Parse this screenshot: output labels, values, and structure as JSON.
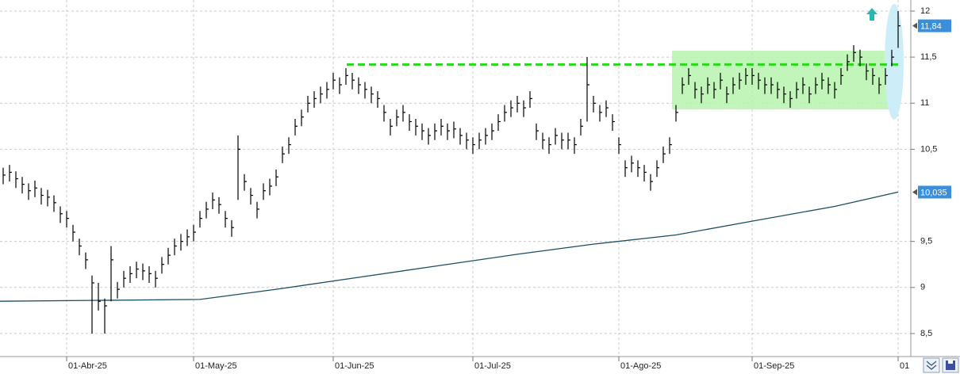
{
  "chart_data": {
    "type": "ohlc",
    "color": "#000000",
    "xlim": [
      -0.5,
      143
    ],
    "xticks": [
      {
        "value": 10,
        "label": "01-Abr-25"
      },
      {
        "value": 30,
        "label": "01-May-25"
      },
      {
        "value": 52,
        "label": "01-Jun-25"
      },
      {
        "value": 74,
        "label": "01-Jul-25"
      },
      {
        "value": 97,
        "label": "01-Ago-25"
      },
      {
        "value": 118,
        "label": "01-Sep-25"
      },
      {
        "value": 141,
        "label": "01"
      }
    ],
    "ylim": [
      8.25,
      12.12
    ],
    "yticks": [
      {
        "value": 8.5,
        "label": "8,5"
      },
      9,
      {
        "value": 9.5,
        "label": "9,5"
      },
      {
        "value": 10.5,
        "label": "10,5"
      },
      11,
      {
        "value": 11.5,
        "label": "11,5"
      },
      12
    ],
    "grid": true,
    "high": [
      10.3,
      10.33,
      10.26,
      10.2,
      10.13,
      10.16,
      10.08,
      10.06,
      10.0,
      9.88,
      9.83,
      9.68,
      9.53,
      9.38,
      9.13,
      9.05,
      8.88,
      9.45,
      9.06,
      9.18,
      9.23,
      9.28,
      9.26,
      9.23,
      9.18,
      9.33,
      9.43,
      9.53,
      9.58,
      9.63,
      9.68,
      9.83,
      9.93,
      10.03,
      9.98,
      9.83,
      9.73,
      10.65,
      10.23,
      10.08,
      9.93,
      10.13,
      10.18,
      10.28,
      10.53,
      10.63,
      10.83,
      10.93,
      11.08,
      11.13,
      11.18,
      11.23,
      11.33,
      11.28,
      11.38,
      11.33,
      11.28,
      11.23,
      11.18,
      11.13,
      10.98,
      10.83,
      10.93,
      10.98,
      10.88,
      10.83,
      10.78,
      10.73,
      10.78,
      10.83,
      10.78,
      10.8,
      10.73,
      10.68,
      10.63,
      10.68,
      10.73,
      10.78,
      10.88,
      10.98,
      11.03,
      11.08,
      11.03,
      11.13,
      10.78,
      10.68,
      10.63,
      10.73,
      10.68,
      10.68,
      10.63,
      10.83,
      11.5,
      11.08,
      10.98,
      11.03,
      10.88,
      10.63,
      10.38,
      10.43,
      10.38,
      10.33,
      10.23,
      10.38,
      10.53,
      10.63,
      10.98,
      11.28,
      11.38,
      11.23,
      11.18,
      11.28,
      11.23,
      11.33,
      11.18,
      11.28,
      11.33,
      11.38,
      11.38,
      11.33,
      11.28,
      11.28,
      11.23,
      11.18,
      11.13,
      11.23,
      11.28,
      11.18,
      11.28,
      11.33,
      11.28,
      11.23,
      11.38,
      11.53,
      11.63,
      11.58,
      11.43,
      11.38,
      11.28,
      11.38,
      11.58,
      12.0
    ],
    "low": [
      10.12,
      10.15,
      10.08,
      10.02,
      9.95,
      9.98,
      9.9,
      9.88,
      9.82,
      9.7,
      9.65,
      9.5,
      9.35,
      9.2,
      8.5,
      8.75,
      8.5,
      8.85,
      8.88,
      9.0,
      9.05,
      9.1,
      9.08,
      9.05,
      9.0,
      9.15,
      9.25,
      9.35,
      9.4,
      9.45,
      9.5,
      9.65,
      9.75,
      9.85,
      9.8,
      9.65,
      9.55,
      9.95,
      10.05,
      9.9,
      9.75,
      9.95,
      10.0,
      10.1,
      10.35,
      10.45,
      10.65,
      10.75,
      10.9,
      10.95,
      11.0,
      11.05,
      11.15,
      11.1,
      11.2,
      11.15,
      11.1,
      11.05,
      11.0,
      10.95,
      10.8,
      10.65,
      10.75,
      10.8,
      10.7,
      10.65,
      10.6,
      10.55,
      10.6,
      10.65,
      10.6,
      10.62,
      10.55,
      10.5,
      10.45,
      10.5,
      10.55,
      10.6,
      10.7,
      10.8,
      10.85,
      10.9,
      10.85,
      10.95,
      10.6,
      10.5,
      10.45,
      10.55,
      10.5,
      10.5,
      10.45,
      10.65,
      10.8,
      10.9,
      10.8,
      10.85,
      10.7,
      10.45,
      10.2,
      10.25,
      10.2,
      10.15,
      10.05,
      10.2,
      10.35,
      10.45,
      10.8,
      11.1,
      11.2,
      11.05,
      11.0,
      11.1,
      11.05,
      11.15,
      11.0,
      11.1,
      11.15,
      11.2,
      11.2,
      11.15,
      11.1,
      11.1,
      11.05,
      11.0,
      10.95,
      11.05,
      11.1,
      11.0,
      11.1,
      11.15,
      11.1,
      11.05,
      11.2,
      11.35,
      11.45,
      11.4,
      11.25,
      11.2,
      11.1,
      11.2,
      11.4,
      11.6
    ],
    "close": [
      10.22,
      10.25,
      10.18,
      10.12,
      10.05,
      10.08,
      10.0,
      9.98,
      9.92,
      9.8,
      9.75,
      9.6,
      9.45,
      9.3,
      9.05,
      8.85,
      8.8,
      9.3,
      8.98,
      9.1,
      9.15,
      9.2,
      9.18,
      9.15,
      9.1,
      9.25,
      9.35,
      9.45,
      9.5,
      9.55,
      9.6,
      9.75,
      9.85,
      9.95,
      9.9,
      9.75,
      9.65,
      10.5,
      10.15,
      10.0,
      9.85,
      10.05,
      10.1,
      10.2,
      10.45,
      10.55,
      10.75,
      10.85,
      11.0,
      11.05,
      11.1,
      11.15,
      11.25,
      11.2,
      11.3,
      11.25,
      11.2,
      11.15,
      11.1,
      11.05,
      10.9,
      10.75,
      10.85,
      10.9,
      10.8,
      10.75,
      10.7,
      10.65,
      10.7,
      10.75,
      10.7,
      10.72,
      10.65,
      10.6,
      10.55,
      10.6,
      10.65,
      10.7,
      10.8,
      10.9,
      10.95,
      11.0,
      10.95,
      11.05,
      10.7,
      10.6,
      10.55,
      10.65,
      10.6,
      10.6,
      10.55,
      10.75,
      11.2,
      11.0,
      10.9,
      10.95,
      10.8,
      10.55,
      10.3,
      10.35,
      10.3,
      10.25,
      10.15,
      10.3,
      10.45,
      10.55,
      10.9,
      11.2,
      11.3,
      11.15,
      11.1,
      11.2,
      11.15,
      11.25,
      11.1,
      11.2,
      11.25,
      11.3,
      11.3,
      11.25,
      11.2,
      11.2,
      11.15,
      11.1,
      11.05,
      11.15,
      11.2,
      11.1,
      11.2,
      11.25,
      11.2,
      11.15,
      11.3,
      11.45,
      11.55,
      11.5,
      11.35,
      11.3,
      11.2,
      11.3,
      11.5,
      11.84
    ],
    "moving_average": {
      "color": "#1c4f63",
      "x": [
        -0.5,
        31,
        43,
        56,
        68,
        81,
        93,
        106,
        118,
        131,
        141
      ],
      "values": [
        8.85,
        8.87,
        8.98,
        9.11,
        9.23,
        9.36,
        9.47,
        9.57,
        9.72,
        9.88,
        10.035
      ]
    },
    "resistance_level": 11.42,
    "resistance_color": "#22dd11",
    "price_labels": [
      {
        "value": 11.84,
        "label": "11,84"
      },
      {
        "value": 10.035,
        "label": "10,035"
      }
    ],
    "price_label_color": "#3a8fdc"
  }
}
